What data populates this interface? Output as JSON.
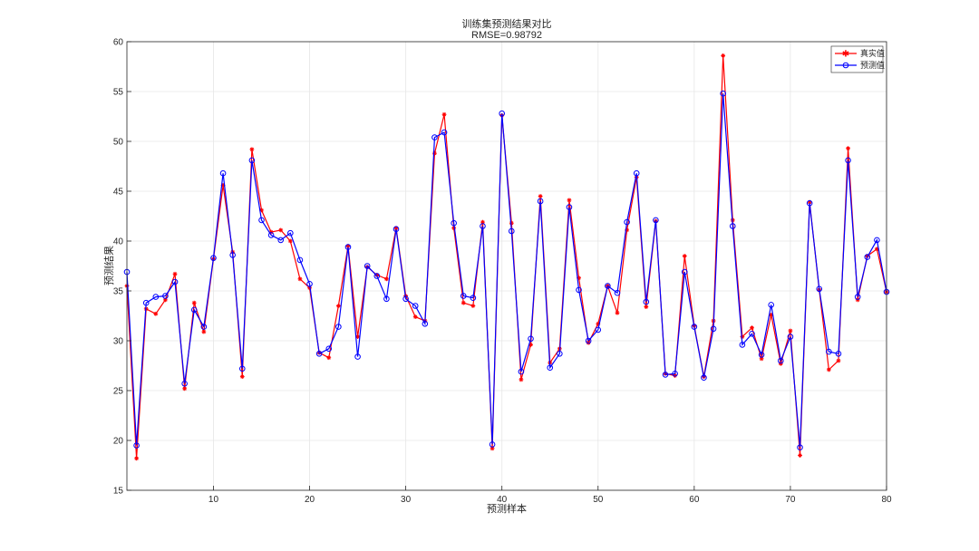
{
  "chart_data": {
    "type": "line",
    "title": "训练集预测结果对比",
    "subtitle": "RMSE=0.98792",
    "xlabel": "预测样本",
    "ylabel": "预测结果",
    "xlim": [
      1,
      80
    ],
    "ylim": [
      15,
      60
    ],
    "xticks": [
      10,
      20,
      30,
      40,
      50,
      60,
      70,
      80
    ],
    "yticks": [
      15,
      20,
      25,
      30,
      35,
      40,
      45,
      50,
      55,
      60
    ],
    "grid": true,
    "legend_position": "top-right",
    "x": [
      1,
      2,
      3,
      4,
      5,
      6,
      7,
      8,
      9,
      10,
      11,
      12,
      13,
      14,
      15,
      16,
      17,
      18,
      19,
      20,
      21,
      22,
      23,
      24,
      25,
      26,
      27,
      28,
      29,
      30,
      31,
      32,
      33,
      34,
      35,
      36,
      37,
      38,
      39,
      40,
      41,
      42,
      43,
      44,
      45,
      46,
      47,
      48,
      49,
      50,
      51,
      52,
      53,
      54,
      55,
      56,
      57,
      58,
      59,
      60,
      61,
      62,
      63,
      64,
      65,
      66,
      67,
      68,
      69,
      70,
      71,
      72,
      73,
      74,
      75,
      76,
      77,
      78,
      79,
      80
    ],
    "series": [
      {
        "name": "真实值",
        "color": "#ff0000",
        "marker": "star",
        "values": [
          35.5,
          18.2,
          33.2,
          32.7,
          34.1,
          36.7,
          25.2,
          33.8,
          30.9,
          38.2,
          45.6,
          38.9,
          26.4,
          49.2,
          43.1,
          40.9,
          41.1,
          40.0,
          36.2,
          35.3,
          28.8,
          28.3,
          33.5,
          39.5,
          30.4,
          37.4,
          36.6,
          36.2,
          41.3,
          34.5,
          32.4,
          32.0,
          48.8,
          52.7,
          41.3,
          33.8,
          33.5,
          41.9,
          19.2,
          52.6,
          41.8,
          26.1,
          29.6,
          44.5,
          27.8,
          29.2,
          44.1,
          36.3,
          29.8,
          31.7,
          35.5,
          32.8,
          41.1,
          46.4,
          33.4,
          42.0,
          26.7,
          26.5,
          38.5,
          31.5,
          26.4,
          32.0,
          58.6,
          42.1,
          30.4,
          31.3,
          28.2,
          32.6,
          27.7,
          31.0,
          18.5,
          43.9,
          35.1,
          27.1,
          28.0,
          49.3,
          34.1,
          38.5,
          39.2,
          34.9
        ]
      },
      {
        "name": "预测值",
        "color": "#0000ff",
        "marker": "circle",
        "values": [
          36.9,
          19.5,
          33.8,
          34.4,
          34.5,
          35.9,
          25.7,
          33.1,
          31.4,
          38.3,
          46.8,
          38.6,
          27.2,
          48.1,
          42.1,
          40.6,
          40.1,
          40.8,
          38.1,
          35.7,
          28.7,
          29.2,
          31.4,
          39.4,
          28.4,
          37.5,
          36.5,
          34.2,
          41.2,
          34.2,
          33.5,
          31.7,
          50.4,
          50.9,
          41.8,
          34.5,
          34.3,
          41.5,
          19.6,
          52.8,
          41.0,
          26.9,
          30.2,
          44.0,
          27.3,
          28.7,
          43.4,
          35.1,
          30.0,
          31.1,
          35.5,
          34.8,
          41.9,
          46.8,
          33.9,
          42.1,
          26.6,
          26.7,
          36.9,
          31.4,
          26.3,
          31.2,
          54.8,
          41.5,
          29.6,
          30.7,
          28.6,
          33.6,
          28.0,
          30.4,
          19.3,
          43.8,
          35.2,
          28.9,
          28.7,
          48.1,
          34.4,
          38.4,
          40.1,
          34.9
        ]
      }
    ]
  }
}
